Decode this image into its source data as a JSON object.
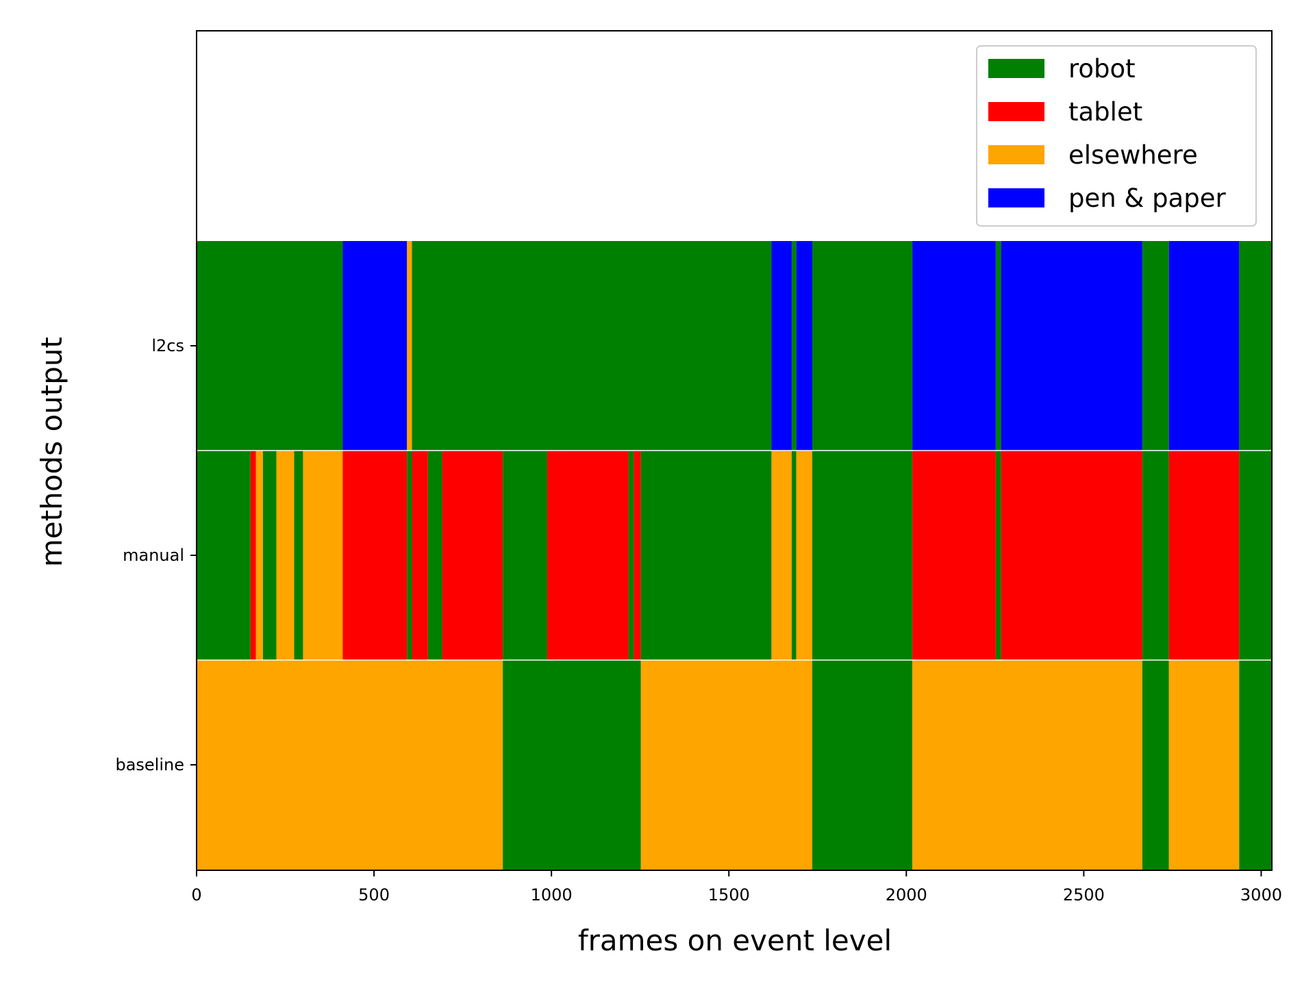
{
  "chart_data": {
    "type": "bar",
    "orientation": "horizontal-timeline",
    "title": "",
    "xlabel": "frames on event level",
    "ylabel": "methods output",
    "xlim": [
      0,
      3030
    ],
    "x_ticks": [
      0,
      500,
      1000,
      1500,
      2000,
      2500,
      3000
    ],
    "grid": false,
    "legend_position": "top-right",
    "categories": [
      "robot",
      "tablet",
      "elsewhere",
      "pen & paper"
    ],
    "colors": {
      "robot": "#008000",
      "tablet": "#ff0000",
      "elsewhere": "#ffa500",
      "pen & paper": "#0000ff"
    },
    "rows": [
      {
        "name": "l2cs",
        "segments": [
          {
            "start": 0,
            "end": 412,
            "label": "robot"
          },
          {
            "start": 412,
            "end": 593,
            "label": "pen & paper"
          },
          {
            "start": 593,
            "end": 607,
            "label": "elsewhere"
          },
          {
            "start": 607,
            "end": 1620,
            "label": "robot"
          },
          {
            "start": 1620,
            "end": 1677,
            "label": "pen & paper"
          },
          {
            "start": 1677,
            "end": 1690,
            "label": "robot"
          },
          {
            "start": 1690,
            "end": 1735,
            "label": "pen & paper"
          },
          {
            "start": 1735,
            "end": 2017,
            "label": "robot"
          },
          {
            "start": 2017,
            "end": 2252,
            "label": "pen & paper"
          },
          {
            "start": 2252,
            "end": 2267,
            "label": "robot"
          },
          {
            "start": 2267,
            "end": 2665,
            "label": "pen & paper"
          },
          {
            "start": 2665,
            "end": 2740,
            "label": "robot"
          },
          {
            "start": 2740,
            "end": 2938,
            "label": "pen & paper"
          },
          {
            "start": 2938,
            "end": 3030,
            "label": "robot"
          }
        ]
      },
      {
        "name": "manual",
        "segments": [
          {
            "start": 0,
            "end": 152,
            "label": "robot"
          },
          {
            "start": 152,
            "end": 167,
            "label": "tablet"
          },
          {
            "start": 167,
            "end": 187,
            "label": "elsewhere"
          },
          {
            "start": 187,
            "end": 225,
            "label": "robot"
          },
          {
            "start": 225,
            "end": 275,
            "label": "elsewhere"
          },
          {
            "start": 275,
            "end": 300,
            "label": "robot"
          },
          {
            "start": 300,
            "end": 412,
            "label": "elsewhere"
          },
          {
            "start": 412,
            "end": 593,
            "label": "tablet"
          },
          {
            "start": 593,
            "end": 607,
            "label": "robot"
          },
          {
            "start": 607,
            "end": 652,
            "label": "tablet"
          },
          {
            "start": 652,
            "end": 692,
            "label": "robot"
          },
          {
            "start": 692,
            "end": 863,
            "label": "tablet"
          },
          {
            "start": 863,
            "end": 988,
            "label": "robot"
          },
          {
            "start": 988,
            "end": 1217,
            "label": "tablet"
          },
          {
            "start": 1217,
            "end": 1232,
            "label": "robot"
          },
          {
            "start": 1232,
            "end": 1252,
            "label": "tablet"
          },
          {
            "start": 1252,
            "end": 1620,
            "label": "robot"
          },
          {
            "start": 1620,
            "end": 1677,
            "label": "elsewhere"
          },
          {
            "start": 1677,
            "end": 1690,
            "label": "robot"
          },
          {
            "start": 1690,
            "end": 1735,
            "label": "elsewhere"
          },
          {
            "start": 1735,
            "end": 2017,
            "label": "robot"
          },
          {
            "start": 2017,
            "end": 2252,
            "label": "tablet"
          },
          {
            "start": 2252,
            "end": 2267,
            "label": "robot"
          },
          {
            "start": 2267,
            "end": 2665,
            "label": "tablet"
          },
          {
            "start": 2665,
            "end": 2740,
            "label": "robot"
          },
          {
            "start": 2740,
            "end": 2938,
            "label": "tablet"
          },
          {
            "start": 2938,
            "end": 3030,
            "label": "robot"
          }
        ]
      },
      {
        "name": "baseline",
        "segments": [
          {
            "start": 0,
            "end": 863,
            "label": "elsewhere"
          },
          {
            "start": 863,
            "end": 1252,
            "label": "robot"
          },
          {
            "start": 1252,
            "end": 1735,
            "label": "elsewhere"
          },
          {
            "start": 1735,
            "end": 2017,
            "label": "robot"
          },
          {
            "start": 2017,
            "end": 2665,
            "label": "elsewhere"
          },
          {
            "start": 2665,
            "end": 2740,
            "label": "robot"
          },
          {
            "start": 2740,
            "end": 2938,
            "label": "elsewhere"
          },
          {
            "start": 2938,
            "end": 3030,
            "label": "robot"
          }
        ]
      }
    ]
  }
}
